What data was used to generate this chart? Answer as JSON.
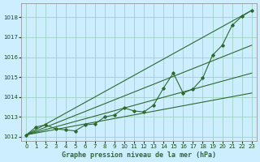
{
  "title": "Graphe pression niveau de la mer (hPa)",
  "bg_color": "#cceeff",
  "line_color": "#2d6a2d",
  "grid_color": "#99ccbb",
  "xlim": [
    -0.5,
    23.5
  ],
  "ylim": [
    1011.8,
    1018.7
  ],
  "yticks": [
    1012,
    1013,
    1014,
    1015,
    1016,
    1017,
    1018
  ],
  "xticks": [
    0,
    1,
    2,
    3,
    4,
    5,
    6,
    7,
    8,
    9,
    10,
    11,
    12,
    13,
    14,
    15,
    16,
    17,
    18,
    19,
    20,
    21,
    22,
    23
  ],
  "marker_series_x": [
    0,
    1,
    2,
    3,
    4,
    5,
    6,
    7,
    8,
    9,
    10,
    11,
    12,
    13,
    14,
    15,
    16,
    17,
    18,
    19,
    20,
    21,
    22,
    23
  ],
  "marker_series_y": [
    1012.1,
    1012.5,
    1012.6,
    1012.4,
    1012.35,
    1012.3,
    1012.6,
    1012.65,
    1013.0,
    1013.1,
    1013.45,
    1013.3,
    1013.25,
    1013.6,
    1014.45,
    1015.2,
    1014.2,
    1014.4,
    1014.95,
    1016.1,
    1016.6,
    1017.6,
    1018.05,
    1018.35
  ],
  "straight_lines": [
    {
      "x0": 0,
      "y0": 1012.1,
      "x1": 23,
      "y1": 1018.35
    },
    {
      "x0": 0,
      "y0": 1012.1,
      "x1": 23,
      "y1": 1016.6
    },
    {
      "x0": 0,
      "y0": 1012.1,
      "x1": 23,
      "y1": 1015.2
    },
    {
      "x0": 0,
      "y0": 1012.1,
      "x1": 23,
      "y1": 1014.2
    }
  ],
  "tick_fontsize": 5,
  "label_fontsize": 6
}
